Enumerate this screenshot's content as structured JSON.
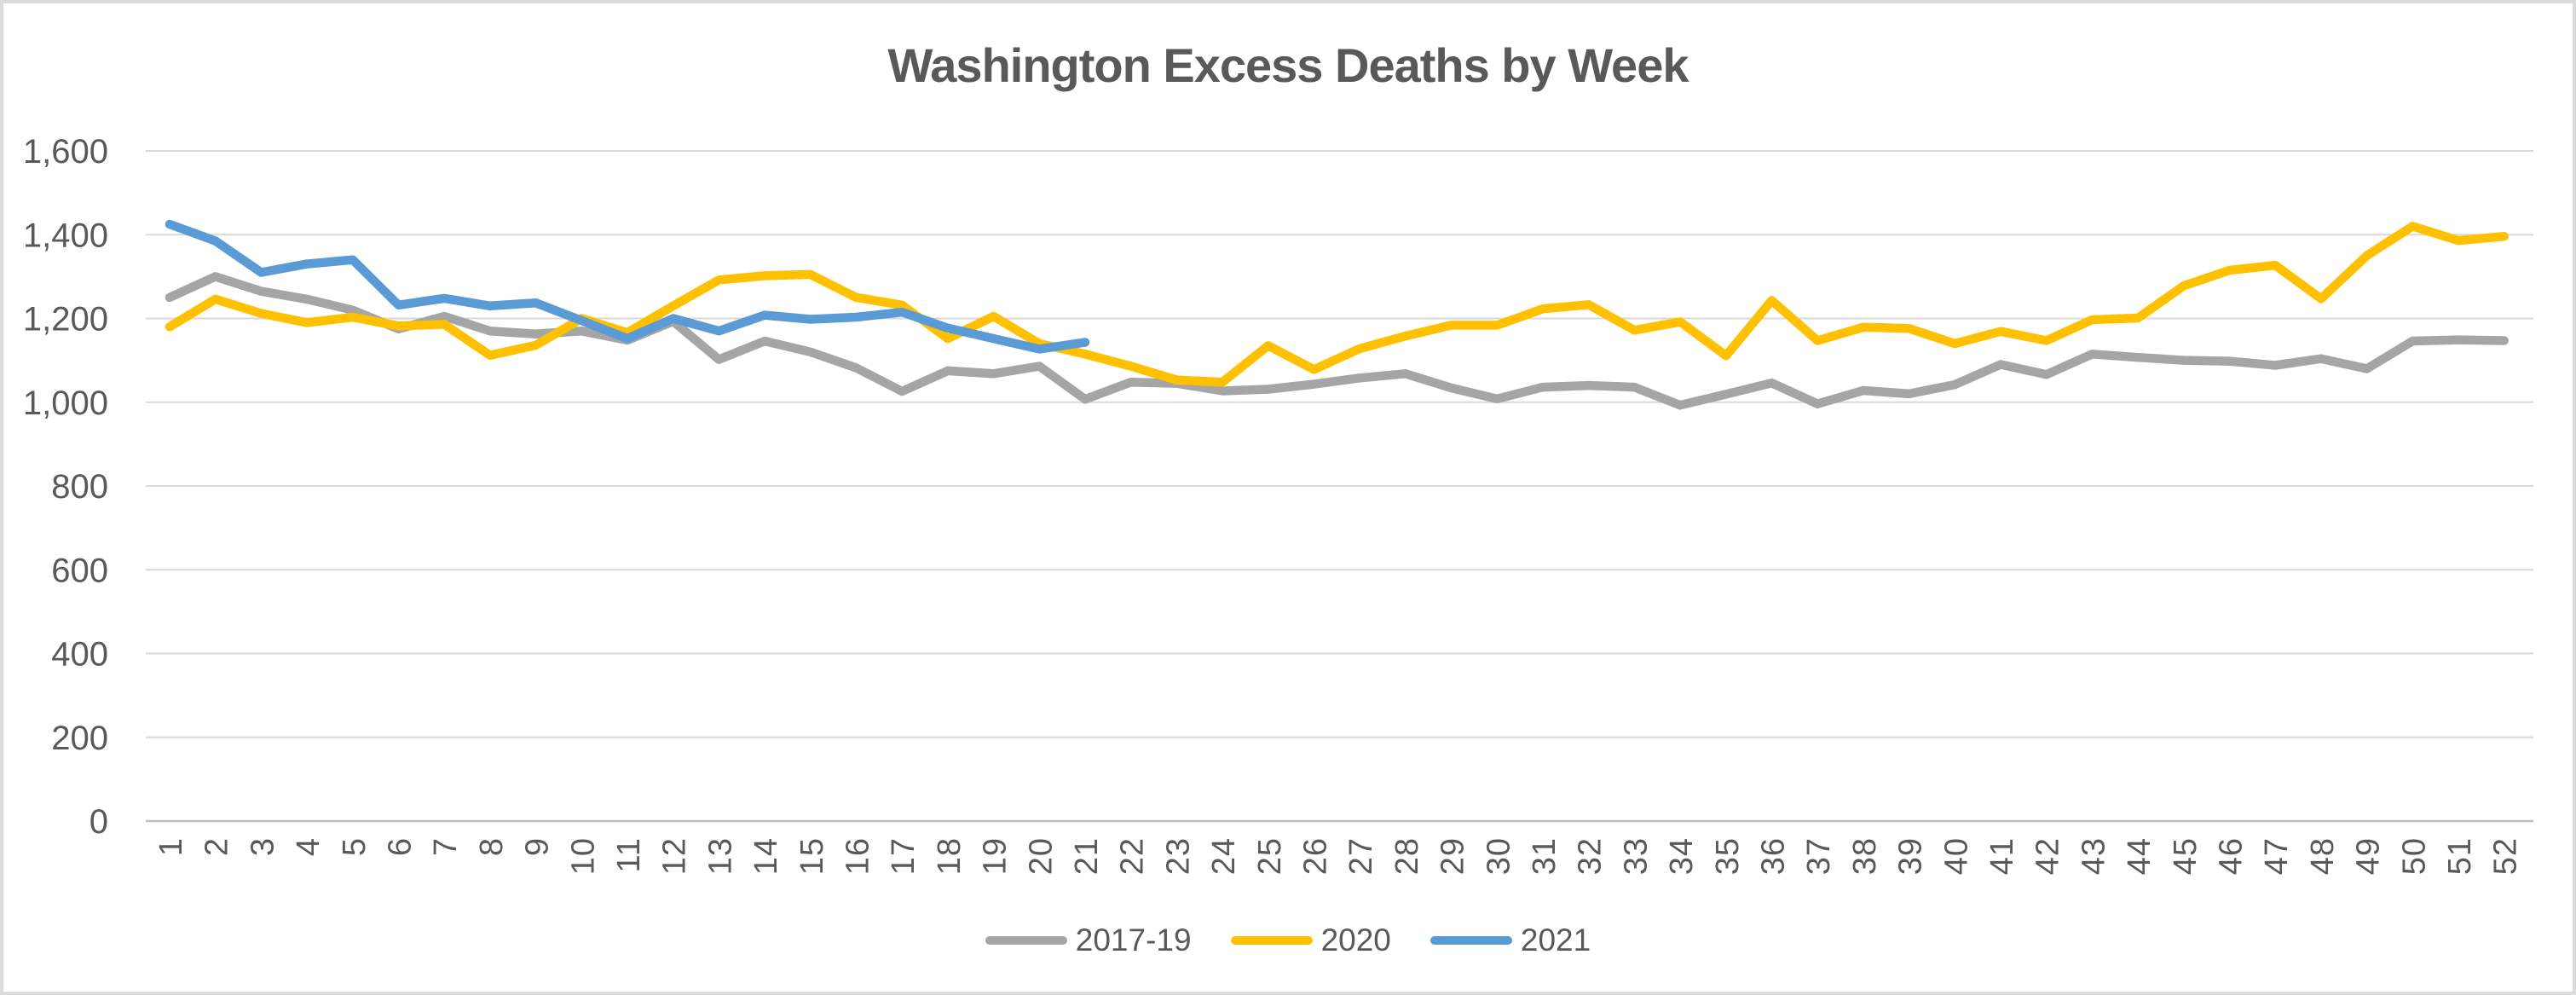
{
  "title": "Washington Excess Deaths by Week",
  "chart_data": {
    "type": "line",
    "title": "Washington Excess Deaths by Week",
    "xlabel": "",
    "ylabel": "",
    "x": [
      1,
      2,
      3,
      4,
      5,
      6,
      7,
      8,
      9,
      10,
      11,
      12,
      13,
      14,
      15,
      16,
      17,
      18,
      19,
      20,
      21,
      22,
      23,
      24,
      25,
      26,
      27,
      28,
      29,
      30,
      31,
      32,
      33,
      34,
      35,
      36,
      37,
      38,
      39,
      40,
      41,
      42,
      43,
      44,
      45,
      46,
      47,
      48,
      49,
      50,
      51,
      52
    ],
    "series": [
      {
        "name": "2017-19",
        "color": "#A5A5A5",
        "values": [
          1250,
          1300,
          1265,
          1246,
          1220,
          1175,
          1205,
          1170,
          1163,
          1170,
          1148,
          1193,
          1102,
          1146,
          1120,
          1082,
          1026,
          1075,
          1068,
          1086,
          1007,
          1048,
          1045,
          1027,
          1031,
          1043,
          1058,
          1068,
          1034,
          1008,
          1036,
          1040,
          1036,
          993,
          1019,
          1046,
          996,
          1028,
          1020,
          1042,
          1090,
          1066,
          1115,
          1107,
          1100,
          1098,
          1088,
          1104,
          1080,
          1146,
          1149,
          1147
        ]
      },
      {
        "name": "2020",
        "color": "#FFC000",
        "values": [
          1180,
          1246,
          1212,
          1190,
          1203,
          1182,
          1186,
          1112,
          1136,
          1200,
          1166,
          1230,
          1292,
          1302,
          1305,
          1250,
          1232,
          1152,
          1205,
          1140,
          1115,
          1086,
          1053,
          1048,
          1135,
          1078,
          1128,
          1158,
          1184,
          1184,
          1223,
          1233,
          1172,
          1192,
          1111,
          1243,
          1147,
          1179,
          1176,
          1140,
          1169,
          1147,
          1197,
          1201,
          1278,
          1315,
          1327,
          1247,
          1350,
          1420,
          1386,
          1396
        ]
      },
      {
        "name": "2021",
        "color": "#5B9BD5",
        "values": [
          1425,
          1385,
          1310,
          1330,
          1340,
          1232,
          1248,
          1230,
          1237,
          1195,
          1152,
          1200,
          1170,
          1208,
          1198,
          1203,
          1215,
          1177,
          1152,
          1127,
          1143
        ]
      }
    ],
    "y_ticks": [
      {
        "value": 0,
        "label": "0"
      },
      {
        "value": 200,
        "label": "200"
      },
      {
        "value": 400,
        "label": "400"
      },
      {
        "value": 600,
        "label": "600"
      },
      {
        "value": 800,
        "label": "800"
      },
      {
        "value": 1000,
        "label": "1,000"
      },
      {
        "value": 1200,
        "label": "1,200"
      },
      {
        "value": 1400,
        "label": "1,400"
      },
      {
        "value": 1600,
        "label": "1,600"
      }
    ],
    "ylim": [
      0,
      1600
    ],
    "grid": "horizontal",
    "legend_position": "bottom",
    "colors": {
      "text": "#595959",
      "gridline": "#D9D9D9",
      "axis_line": "#BFBFBF",
      "background": "#FFFFFF",
      "border": "#DBDBDB"
    }
  }
}
